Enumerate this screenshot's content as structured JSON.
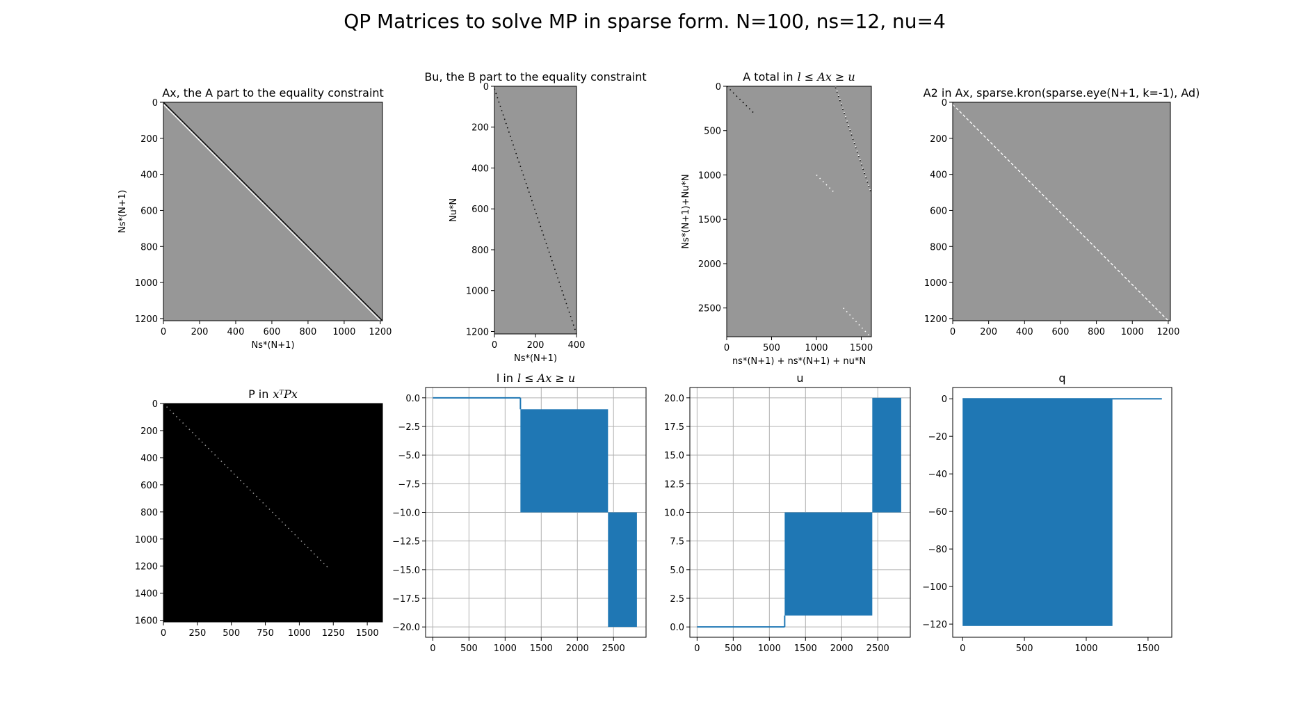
{
  "figure": {
    "suptitle": "QP Matrices to solve MP in sparse form. N=100, ns=12, nu=4"
  },
  "colors": {
    "spy_bg": "#979797",
    "spy_dark": "#000000",
    "spy_light": "#ffffff",
    "line": "#1f77b4",
    "grid": "#b0b0b0"
  },
  "chart_data": [
    {
      "id": "ax",
      "type": "heatmap",
      "title": "Ax, the A part to the equality constraint",
      "xlabel": "Ns*(N+1)",
      "ylabel": "Ns*(N+1)",
      "xlim": [
        0,
        1212
      ],
      "ylim": [
        1212,
        0
      ],
      "xticks": [
        0,
        200,
        400,
        600,
        800,
        1000,
        1200
      ],
      "yticks": [
        0,
        200,
        400,
        600,
        800,
        1000,
        1200
      ],
      "background": "gray",
      "bands": [
        {
          "color": "dark",
          "x": [
            0,
            1212
          ],
          "y": [
            0,
            1212
          ]
        },
        {
          "color": "light",
          "x": [
            0,
            1200
          ],
          "y": [
            12,
            1212
          ]
        }
      ]
    },
    {
      "id": "bu",
      "type": "heatmap",
      "title": "Bu, the B part to the equality constraint",
      "xlabel": "Ns*(N+1)",
      "ylabel": "Nu*N",
      "xlim": [
        0,
        400
      ],
      "ylim": [
        1212,
        0
      ],
      "xticks": [
        0,
        200,
        400
      ],
      "yticks": [
        0,
        200,
        400,
        600,
        800,
        1000,
        1200
      ],
      "background": "gray",
      "bands": [
        {
          "color": "dark",
          "x": [
            0,
            400
          ],
          "y": [
            12,
            1212
          ],
          "dotted": true
        }
      ]
    },
    {
      "id": "atotal",
      "type": "heatmap",
      "title": "A total in",
      "title_math": "l ≤ Ax ≥ u",
      "xlabel": "ns*(N+1) + ns*(N+1) + nu*N",
      "ylabel": "Ns*(N+1)+Nu*N",
      "xlim": [
        0,
        1612
      ],
      "ylim": [
        2824,
        0
      ],
      "xticks": [
        0,
        500,
        1000,
        1500
      ],
      "yticks": [
        0,
        500,
        1000,
        1500,
        2000,
        2500
      ],
      "background": "gray",
      "bands": [
        {
          "color": "dark",
          "x": [
            0,
            300
          ],
          "y": [
            0,
            300
          ],
          "dotted": true
        },
        {
          "color": "dark",
          "x": [
            1212,
            1612
          ],
          "y": [
            12,
            1212
          ],
          "dotted": true
        },
        {
          "color": "light",
          "x": [
            1212,
            1612
          ],
          "y": [
            0,
            1212
          ],
          "dotted": true
        },
        {
          "color": "light",
          "x": [
            1000,
            1212
          ],
          "y": [
            1000,
            1212
          ],
          "dotted": true
        },
        {
          "color": "light",
          "x": [
            1300,
            1600
          ],
          "y": [
            2500,
            2824
          ],
          "dotted": true
        }
      ]
    },
    {
      "id": "a2",
      "type": "heatmap",
      "title": "A2 in Ax, sparse.kron(sparse.eye(N+1, k=-1), Ad)",
      "xlabel": "",
      "ylabel": "",
      "xlim": [
        0,
        1212
      ],
      "ylim": [
        1212,
        0
      ],
      "xticks": [
        0,
        200,
        400,
        600,
        800,
        1000,
        1200
      ],
      "yticks": [
        0,
        200,
        400,
        600,
        800,
        1000,
        1200
      ],
      "background": "gray",
      "bands": [
        {
          "color": "light",
          "x": [
            0,
            1200
          ],
          "y": [
            12,
            1212
          ],
          "dashed": true
        }
      ]
    },
    {
      "id": "p",
      "type": "heatmap",
      "title": "P in",
      "title_math": "xᵀPx",
      "xlabel": "",
      "ylabel": "",
      "xlim": [
        0,
        1612
      ],
      "ylim": [
        1612,
        0
      ],
      "xticks": [
        0,
        250,
        500,
        750,
        1000,
        1250,
        1500
      ],
      "yticks": [
        0,
        200,
        400,
        600,
        800,
        1000,
        1200,
        1400,
        1600
      ],
      "background": "dark",
      "bands": [
        {
          "color": "gray",
          "x": [
            0,
            1212
          ],
          "y": [
            0,
            1212
          ],
          "dotted": true
        }
      ]
    },
    {
      "id": "l",
      "type": "line",
      "title": "l in",
      "title_math": "l ≤ Ax ≥ u",
      "xlabel": "",
      "ylabel": "",
      "xlim": [
        -100,
        2950
      ],
      "ylim": [
        -20.9,
        0.9
      ],
      "xticks": [
        0,
        500,
        1000,
        1500,
        2000,
        2500
      ],
      "yticks": [
        0.0,
        -2.5,
        -5.0,
        -7.5,
        -10.0,
        -12.5,
        -15.0,
        -17.5,
        -20.0
      ],
      "ytick_labels": [
        "0.0",
        "−2.5",
        "−5.0",
        "−7.5",
        "−10.0",
        "−12.5",
        "−15.0",
        "−17.5",
        "−20.0"
      ],
      "grid": true,
      "segments": [
        {
          "x": [
            0,
            1212
          ],
          "y": [
            0,
            0
          ]
        },
        {
          "x": [
            1212,
            1212
          ],
          "y": [
            0,
            -1
          ]
        }
      ],
      "filled_blocks": [
        {
          "x": [
            1212,
            2424
          ],
          "y": [
            -10,
            -1
          ]
        },
        {
          "x": [
            2424,
            2824
          ],
          "y": [
            -20,
            -10
          ]
        }
      ]
    },
    {
      "id": "u",
      "type": "line",
      "title": "u",
      "xlabel": "",
      "ylabel": "",
      "xlim": [
        -100,
        2950
      ],
      "ylim": [
        -0.9,
        20.9
      ],
      "xticks": [
        0,
        500,
        1000,
        1500,
        2000,
        2500
      ],
      "yticks": [
        0.0,
        2.5,
        5.0,
        7.5,
        10.0,
        12.5,
        15.0,
        17.5,
        20.0
      ],
      "ytick_labels": [
        "0.0",
        "2.5",
        "5.0",
        "7.5",
        "10.0",
        "12.5",
        "15.0",
        "17.5",
        "20.0"
      ],
      "grid": true,
      "segments": [
        {
          "x": [
            0,
            1212
          ],
          "y": [
            0,
            0
          ]
        },
        {
          "x": [
            1212,
            1212
          ],
          "y": [
            0,
            1
          ]
        }
      ],
      "filled_blocks": [
        {
          "x": [
            1212,
            2424
          ],
          "y": [
            1,
            10
          ]
        },
        {
          "x": [
            2424,
            2824
          ],
          "y": [
            10,
            20
          ]
        }
      ]
    },
    {
      "id": "q",
      "type": "line",
      "title": "q",
      "xlabel": "",
      "ylabel": "",
      "xlim": [
        -80,
        1692
      ],
      "ylim": [
        -127,
        6
      ],
      "xticks": [
        0,
        500,
        1000,
        1500
      ],
      "yticks": [
        0,
        -20,
        -40,
        -60,
        -80,
        -100,
        -120
      ],
      "ytick_labels": [
        "0",
        "−20",
        "−40",
        "−60",
        "−80",
        "−100",
        "−120"
      ],
      "grid": false,
      "segments": [
        {
          "x": [
            0,
            1612
          ],
          "y": [
            0,
            0
          ]
        }
      ],
      "filled_blocks": [
        {
          "x": [
            0,
            1212
          ],
          "y": [
            -121,
            0
          ]
        }
      ]
    }
  ]
}
